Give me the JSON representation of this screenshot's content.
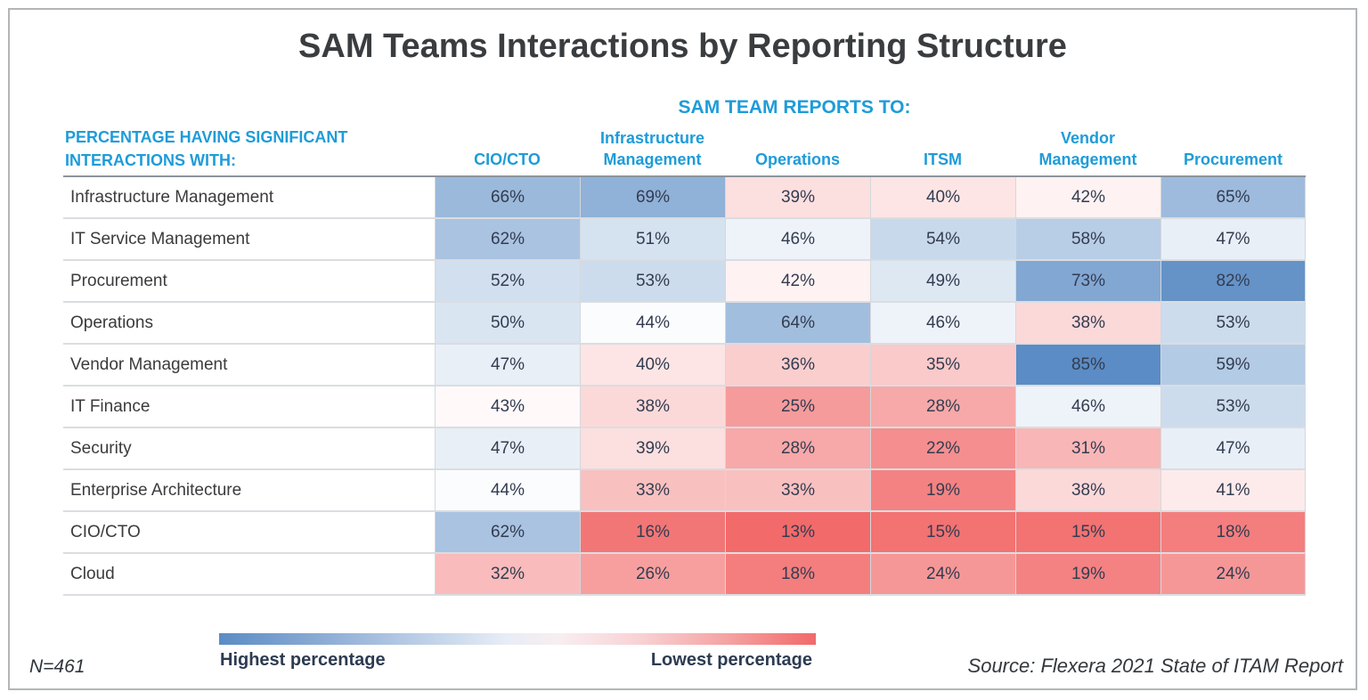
{
  "page": {
    "row_header_line1": "PERCENTAGE HAVING SIGNIFICANT",
    "row_header_line2": "INTERACTIONS WITH:",
    "colors": {
      "header_blue": "#1e9cd8",
      "title_text": "#3a3d40",
      "cell_text": "#333c50",
      "row_label_text": "#3b3b3b"
    }
  },
  "chart_data": {
    "type": "heatmap",
    "title": "SAM Teams Interactions by Reporting Structure",
    "columns_header": "SAM TEAM REPORTS TO:",
    "rows_header": "PERCENTAGE HAVING SIGNIFICANT INTERACTIONS WITH:",
    "columns": [
      "CIO/CTO",
      "Infrastructure Management",
      "Operations",
      "ITSM",
      "Vendor Management",
      "Procurement"
    ],
    "rows": [
      {
        "label": "Infrastructure Management",
        "values": [
          66,
          69,
          39,
          40,
          42,
          65
        ]
      },
      {
        "label": "IT Service Management",
        "values": [
          62,
          51,
          46,
          54,
          58,
          47
        ]
      },
      {
        "label": "Procurement",
        "values": [
          52,
          53,
          42,
          49,
          73,
          82
        ]
      },
      {
        "label": "Operations",
        "values": [
          50,
          44,
          64,
          46,
          38,
          53
        ]
      },
      {
        "label": "Vendor Management",
        "values": [
          47,
          40,
          36,
          35,
          85,
          59
        ]
      },
      {
        "label": "IT Finance",
        "values": [
          43,
          38,
          25,
          28,
          46,
          53
        ]
      },
      {
        "label": "Security",
        "values": [
          47,
          39,
          28,
          22,
          31,
          47
        ]
      },
      {
        "label": "Enterprise Architecture",
        "values": [
          44,
          33,
          33,
          19,
          38,
          41
        ]
      },
      {
        "label": "CIO/CTO",
        "values": [
          62,
          16,
          13,
          15,
          15,
          18
        ]
      },
      {
        "label": "Cloud",
        "values": [
          32,
          26,
          18,
          24,
          19,
          24
        ]
      }
    ],
    "unit": "%",
    "color_scale": {
      "min": 13,
      "mid": 43.5,
      "max": 85,
      "high_color": "#5b8cc5",
      "mid_color": "#ffffff",
      "low_color": "#f26a6a",
      "exponent": 0.8,
      "high_meaning": "Highest percentage",
      "low_meaning": "Lowest percentage"
    },
    "legend": {
      "left_label": "Highest percentage",
      "right_label": "Lowest percentage",
      "position": "bottom"
    },
    "sample_size": "N=461",
    "source": "Source: Flexera 2021 State of ITAM Report",
    "grid": true
  }
}
